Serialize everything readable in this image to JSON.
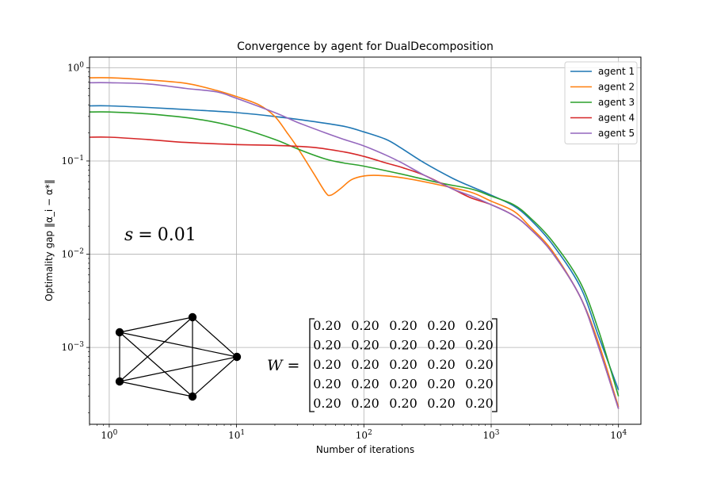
{
  "chart_data": {
    "type": "line",
    "title": "Convergence by agent for DualDecomposition",
    "xlabel": "Number of iterations",
    "ylabel": "Optimality gap ‖α_i − α*‖",
    "xscale": "log",
    "yscale": "log",
    "xlim": [
      0.7,
      15000
    ],
    "ylim": [
      0.00015,
      1.3
    ],
    "grid": true,
    "legend_position": "top-right",
    "x_ticks": [
      {
        "value": 1,
        "base": "10",
        "exp": "0"
      },
      {
        "value": 10,
        "base": "10",
        "exp": "1"
      },
      {
        "value": 100,
        "base": "10",
        "exp": "2"
      },
      {
        "value": 1000,
        "base": "10",
        "exp": "3"
      },
      {
        "value": 10000,
        "base": "10",
        "exp": "4"
      }
    ],
    "y_ticks": [
      {
        "value": 1,
        "base": "10",
        "exp": "0"
      },
      {
        "value": 0.1,
        "base": "10",
        "exp": "−1"
      },
      {
        "value": 0.01,
        "base": "10",
        "exp": "−2"
      },
      {
        "value": 0.001,
        "base": "10",
        "exp": "−3"
      }
    ],
    "series": [
      {
        "name": "agent 1",
        "color": "#1f77b4",
        "points": [
          [
            0.7,
            0.39
          ],
          [
            1,
            0.39
          ],
          [
            2,
            0.375
          ],
          [
            5,
            0.35
          ],
          [
            10,
            0.33
          ],
          [
            20,
            0.3
          ],
          [
            40,
            0.265
          ],
          [
            70,
            0.235
          ],
          [
            100,
            0.205
          ],
          [
            150,
            0.17
          ],
          [
            200,
            0.135
          ],
          [
            300,
            0.095
          ],
          [
            500,
            0.065
          ],
          [
            700,
            0.053
          ],
          [
            1000,
            0.043
          ],
          [
            1500,
            0.033
          ],
          [
            2000,
            0.024
          ],
          [
            3000,
            0.013
          ],
          [
            5000,
            0.0045
          ],
          [
            7000,
            0.0013
          ],
          [
            10000,
            0.00035
          ]
        ]
      },
      {
        "name": "agent 2",
        "color": "#ff7f0e",
        "points": [
          [
            0.7,
            0.78
          ],
          [
            1,
            0.78
          ],
          [
            2,
            0.74
          ],
          [
            4,
            0.68
          ],
          [
            7,
            0.57
          ],
          [
            10,
            0.49
          ],
          [
            15,
            0.4
          ],
          [
            20,
            0.3
          ],
          [
            25,
            0.2
          ],
          [
            30,
            0.14
          ],
          [
            40,
            0.075
          ],
          [
            50,
            0.046
          ],
          [
            55,
            0.043
          ],
          [
            65,
            0.05
          ],
          [
            80,
            0.063
          ],
          [
            100,
            0.069
          ],
          [
            130,
            0.07
          ],
          [
            200,
            0.066
          ],
          [
            400,
            0.055
          ],
          [
            700,
            0.046
          ],
          [
            1000,
            0.037
          ],
          [
            1500,
            0.029
          ],
          [
            2000,
            0.02
          ],
          [
            3000,
            0.011
          ],
          [
            5000,
            0.0035
          ],
          [
            7000,
            0.0011
          ],
          [
            10000,
            0.00023
          ]
        ]
      },
      {
        "name": "agent 3",
        "color": "#2ca02c",
        "points": [
          [
            0.7,
            0.335
          ],
          [
            1,
            0.335
          ],
          [
            2,
            0.32
          ],
          [
            5,
            0.28
          ],
          [
            10,
            0.23
          ],
          [
            20,
            0.17
          ],
          [
            30,
            0.135
          ],
          [
            50,
            0.105
          ],
          [
            70,
            0.095
          ],
          [
            100,
            0.088
          ],
          [
            200,
            0.072
          ],
          [
            400,
            0.058
          ],
          [
            700,
            0.05
          ],
          [
            1000,
            0.042
          ],
          [
            1500,
            0.034
          ],
          [
            2000,
            0.025
          ],
          [
            3000,
            0.014
          ],
          [
            5000,
            0.005
          ],
          [
            7000,
            0.0015
          ],
          [
            10000,
            0.0003
          ]
        ]
      },
      {
        "name": "agent 4",
        "color": "#d62728",
        "points": [
          [
            0.7,
            0.18
          ],
          [
            1,
            0.18
          ],
          [
            2,
            0.17
          ],
          [
            4,
            0.158
          ],
          [
            10,
            0.15
          ],
          [
            20,
            0.147
          ],
          [
            40,
            0.14
          ],
          [
            70,
            0.125
          ],
          [
            100,
            0.112
          ],
          [
            150,
            0.095
          ],
          [
            200,
            0.085
          ],
          [
            300,
            0.07
          ],
          [
            500,
            0.05
          ],
          [
            700,
            0.04
          ],
          [
            1000,
            0.034
          ],
          [
            1500,
            0.026
          ],
          [
            2000,
            0.019
          ],
          [
            3000,
            0.0105
          ],
          [
            5000,
            0.0035
          ],
          [
            7000,
            0.001
          ],
          [
            10000,
            0.00022
          ]
        ]
      },
      {
        "name": "agent 5",
        "color": "#9467bd",
        "points": [
          [
            0.7,
            0.69
          ],
          [
            1,
            0.69
          ],
          [
            2,
            0.67
          ],
          [
            4,
            0.6
          ],
          [
            7,
            0.55
          ],
          [
            10,
            0.47
          ],
          [
            20,
            0.33
          ],
          [
            30,
            0.26
          ],
          [
            50,
            0.2
          ],
          [
            70,
            0.17
          ],
          [
            100,
            0.145
          ],
          [
            150,
            0.115
          ],
          [
            200,
            0.095
          ],
          [
            300,
            0.07
          ],
          [
            500,
            0.05
          ],
          [
            700,
            0.042
          ],
          [
            1000,
            0.034
          ],
          [
            1500,
            0.026
          ],
          [
            2000,
            0.019
          ],
          [
            3000,
            0.0105
          ],
          [
            5000,
            0.0035
          ],
          [
            7000,
            0.001
          ],
          [
            10000,
            0.00022
          ]
        ]
      }
    ],
    "annotations": {
      "step_label": {
        "lhs": "s",
        "eq": "=",
        "rhs": "0.01"
      },
      "matrix_label": {
        "lhs": "W",
        "eq": "="
      },
      "matrix": [
        [
          "0.20",
          "0.20",
          "0.20",
          "0.20",
          "0.20"
        ],
        [
          "0.20",
          "0.20",
          "0.20",
          "0.20",
          "0.20"
        ],
        [
          "0.20",
          "0.20",
          "0.20",
          "0.20",
          "0.20"
        ],
        [
          "0.20",
          "0.20",
          "0.20",
          "0.20",
          "0.20"
        ],
        [
          "0.20",
          "0.20",
          "0.20",
          "0.20",
          "0.20"
        ]
      ],
      "graph": {
        "nodes": 5,
        "edges": [
          [
            0,
            1
          ],
          [
            0,
            2
          ],
          [
            0,
            3
          ],
          [
            0,
            4
          ],
          [
            1,
            2
          ],
          [
            1,
            3
          ],
          [
            1,
            4
          ],
          [
            2,
            3
          ],
          [
            2,
            4
          ],
          [
            3,
            4
          ]
        ]
      }
    }
  }
}
